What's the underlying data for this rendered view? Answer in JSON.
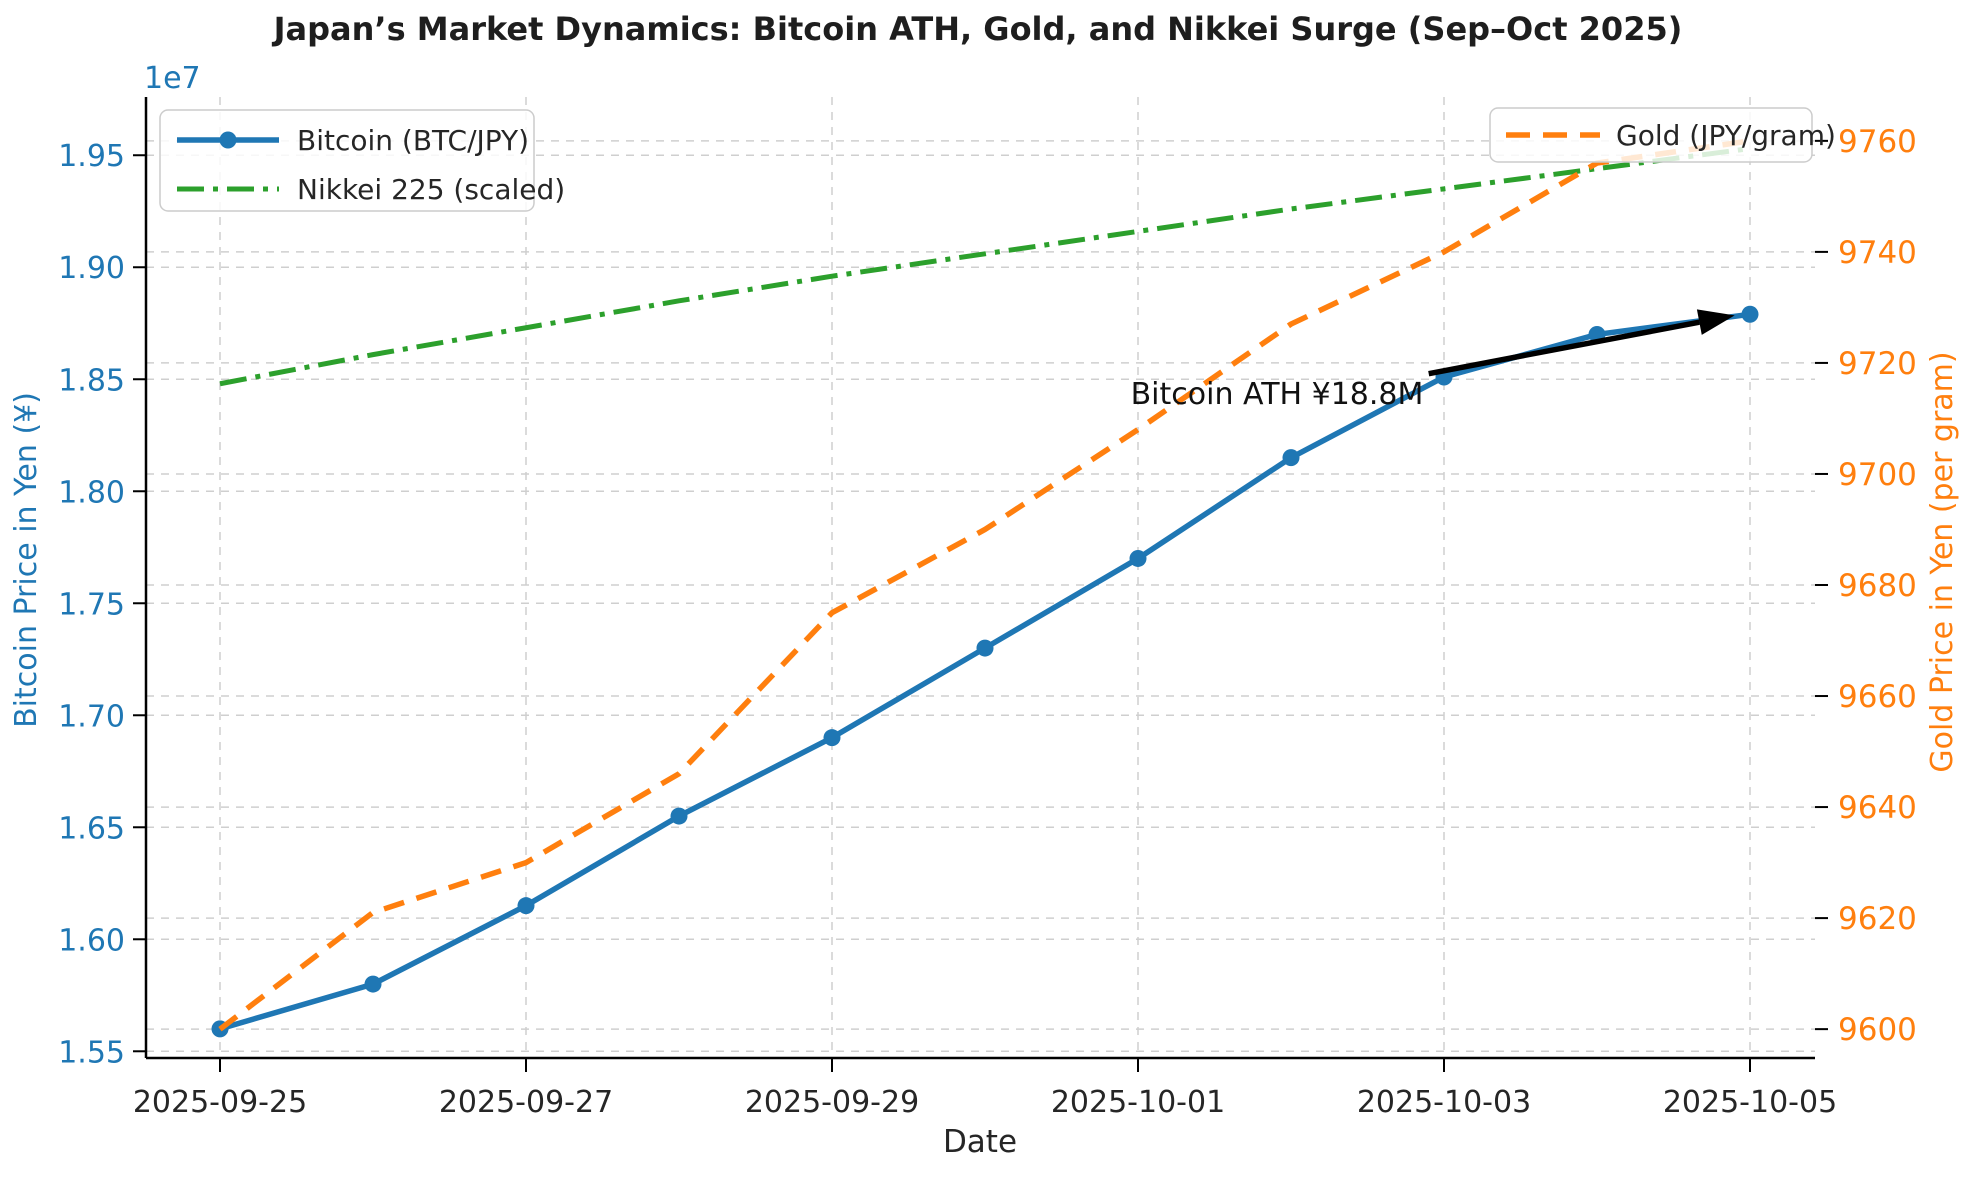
{
  "title": "Japan’s Market Dynamics: Bitcoin ATH, Gold, and Nikkei Surge (Sep–Oct 2025)",
  "colors": {
    "bitcoin": "#1f77b4",
    "gold": "#ff7f0e",
    "nikkei": "#2ca02c",
    "grid": "#cfcfcf",
    "axis_text": "#262626",
    "spine": "#000000",
    "annotation_arrow": "#000000"
  },
  "legend_left": {
    "entries": [
      "Bitcoin (BTC/JPY)",
      "Nikkei 225 (scaled)"
    ]
  },
  "legend_right": {
    "entries": [
      "Gold (JPY/gram)"
    ]
  },
  "chart_data": {
    "type": "line",
    "title": "Japan’s Market Dynamics: Bitcoin ATH, Gold, and Nikkei Surge (Sep–Oct 2025)",
    "xlabel": "Date",
    "x_dates": [
      "2025-09-25",
      "2025-09-26",
      "2025-09-27",
      "2025-09-28",
      "2025-09-29",
      "2025-09-30",
      "2025-10-01",
      "2025-10-02",
      "2025-10-03",
      "2025-10-04",
      "2025-10-05"
    ],
    "x_tick_days": [
      0,
      2,
      4,
      6,
      8,
      10
    ],
    "x_tick_labels": [
      "2025-09-25",
      "2025-09-27",
      "2025-09-29",
      "2025-10-01",
      "2025-10-03",
      "2025-10-05"
    ],
    "y_left": {
      "label": "Bitcoin Price in Yen (¥)",
      "offset_text": "1e7",
      "color": "#1f77b4",
      "ticks_e7": [
        1.55,
        1.6,
        1.65,
        1.7,
        1.75,
        1.8,
        1.85,
        1.9,
        1.95
      ],
      "lim_e7": [
        1.547,
        1.976
      ],
      "grid": true
    },
    "y_right": {
      "label": "Gold Price in Yen (per gram)",
      "color": "#ff7f0e",
      "ticks": [
        9600,
        9620,
        9640,
        9660,
        9680,
        9700,
        9720,
        9740,
        9760
      ],
      "lim": [
        9594.8,
        9767.9
      ],
      "grid": true
    },
    "series": [
      {
        "name": "Bitcoin (BTC/JPY)",
        "axis": "left",
        "color": "#1f77b4",
        "line_style": "solid",
        "marker": "circle",
        "values_e7": [
          1.56,
          1.58,
          1.615,
          1.655,
          1.69,
          1.73,
          1.77,
          1.815,
          1.851,
          1.87,
          1.879
        ]
      },
      {
        "name": "Nikkei 225 (scaled)",
        "axis": "left",
        "color": "#2ca02c",
        "line_style": "dashdot",
        "marker": "none",
        "values_e7": [
          1.848,
          1.861,
          1.873,
          1.885,
          1.896,
          1.906,
          1.916,
          1.926,
          1.935,
          1.944,
          1.953
        ]
      },
      {
        "name": "Gold (JPY/gram)",
        "axis": "right",
        "color": "#ff7f0e",
        "line_style": "dashed",
        "marker": "none",
        "values": [
          9600,
          9621,
          9630,
          9646,
          9675,
          9690,
          9708,
          9727,
          9740,
          9756,
          9760
        ]
      }
    ],
    "annotation": {
      "text": "Bitcoin ATH ¥18.8M",
      "text_xy_day_e7": [
        6.9,
        1.838
      ],
      "arrow_from_day_e7": [
        7.9,
        1.8525
      ],
      "arrow_to_day_e7": [
        9.9,
        1.8785
      ]
    },
    "legend_position": [
      "upper left",
      "upper right"
    ]
  }
}
